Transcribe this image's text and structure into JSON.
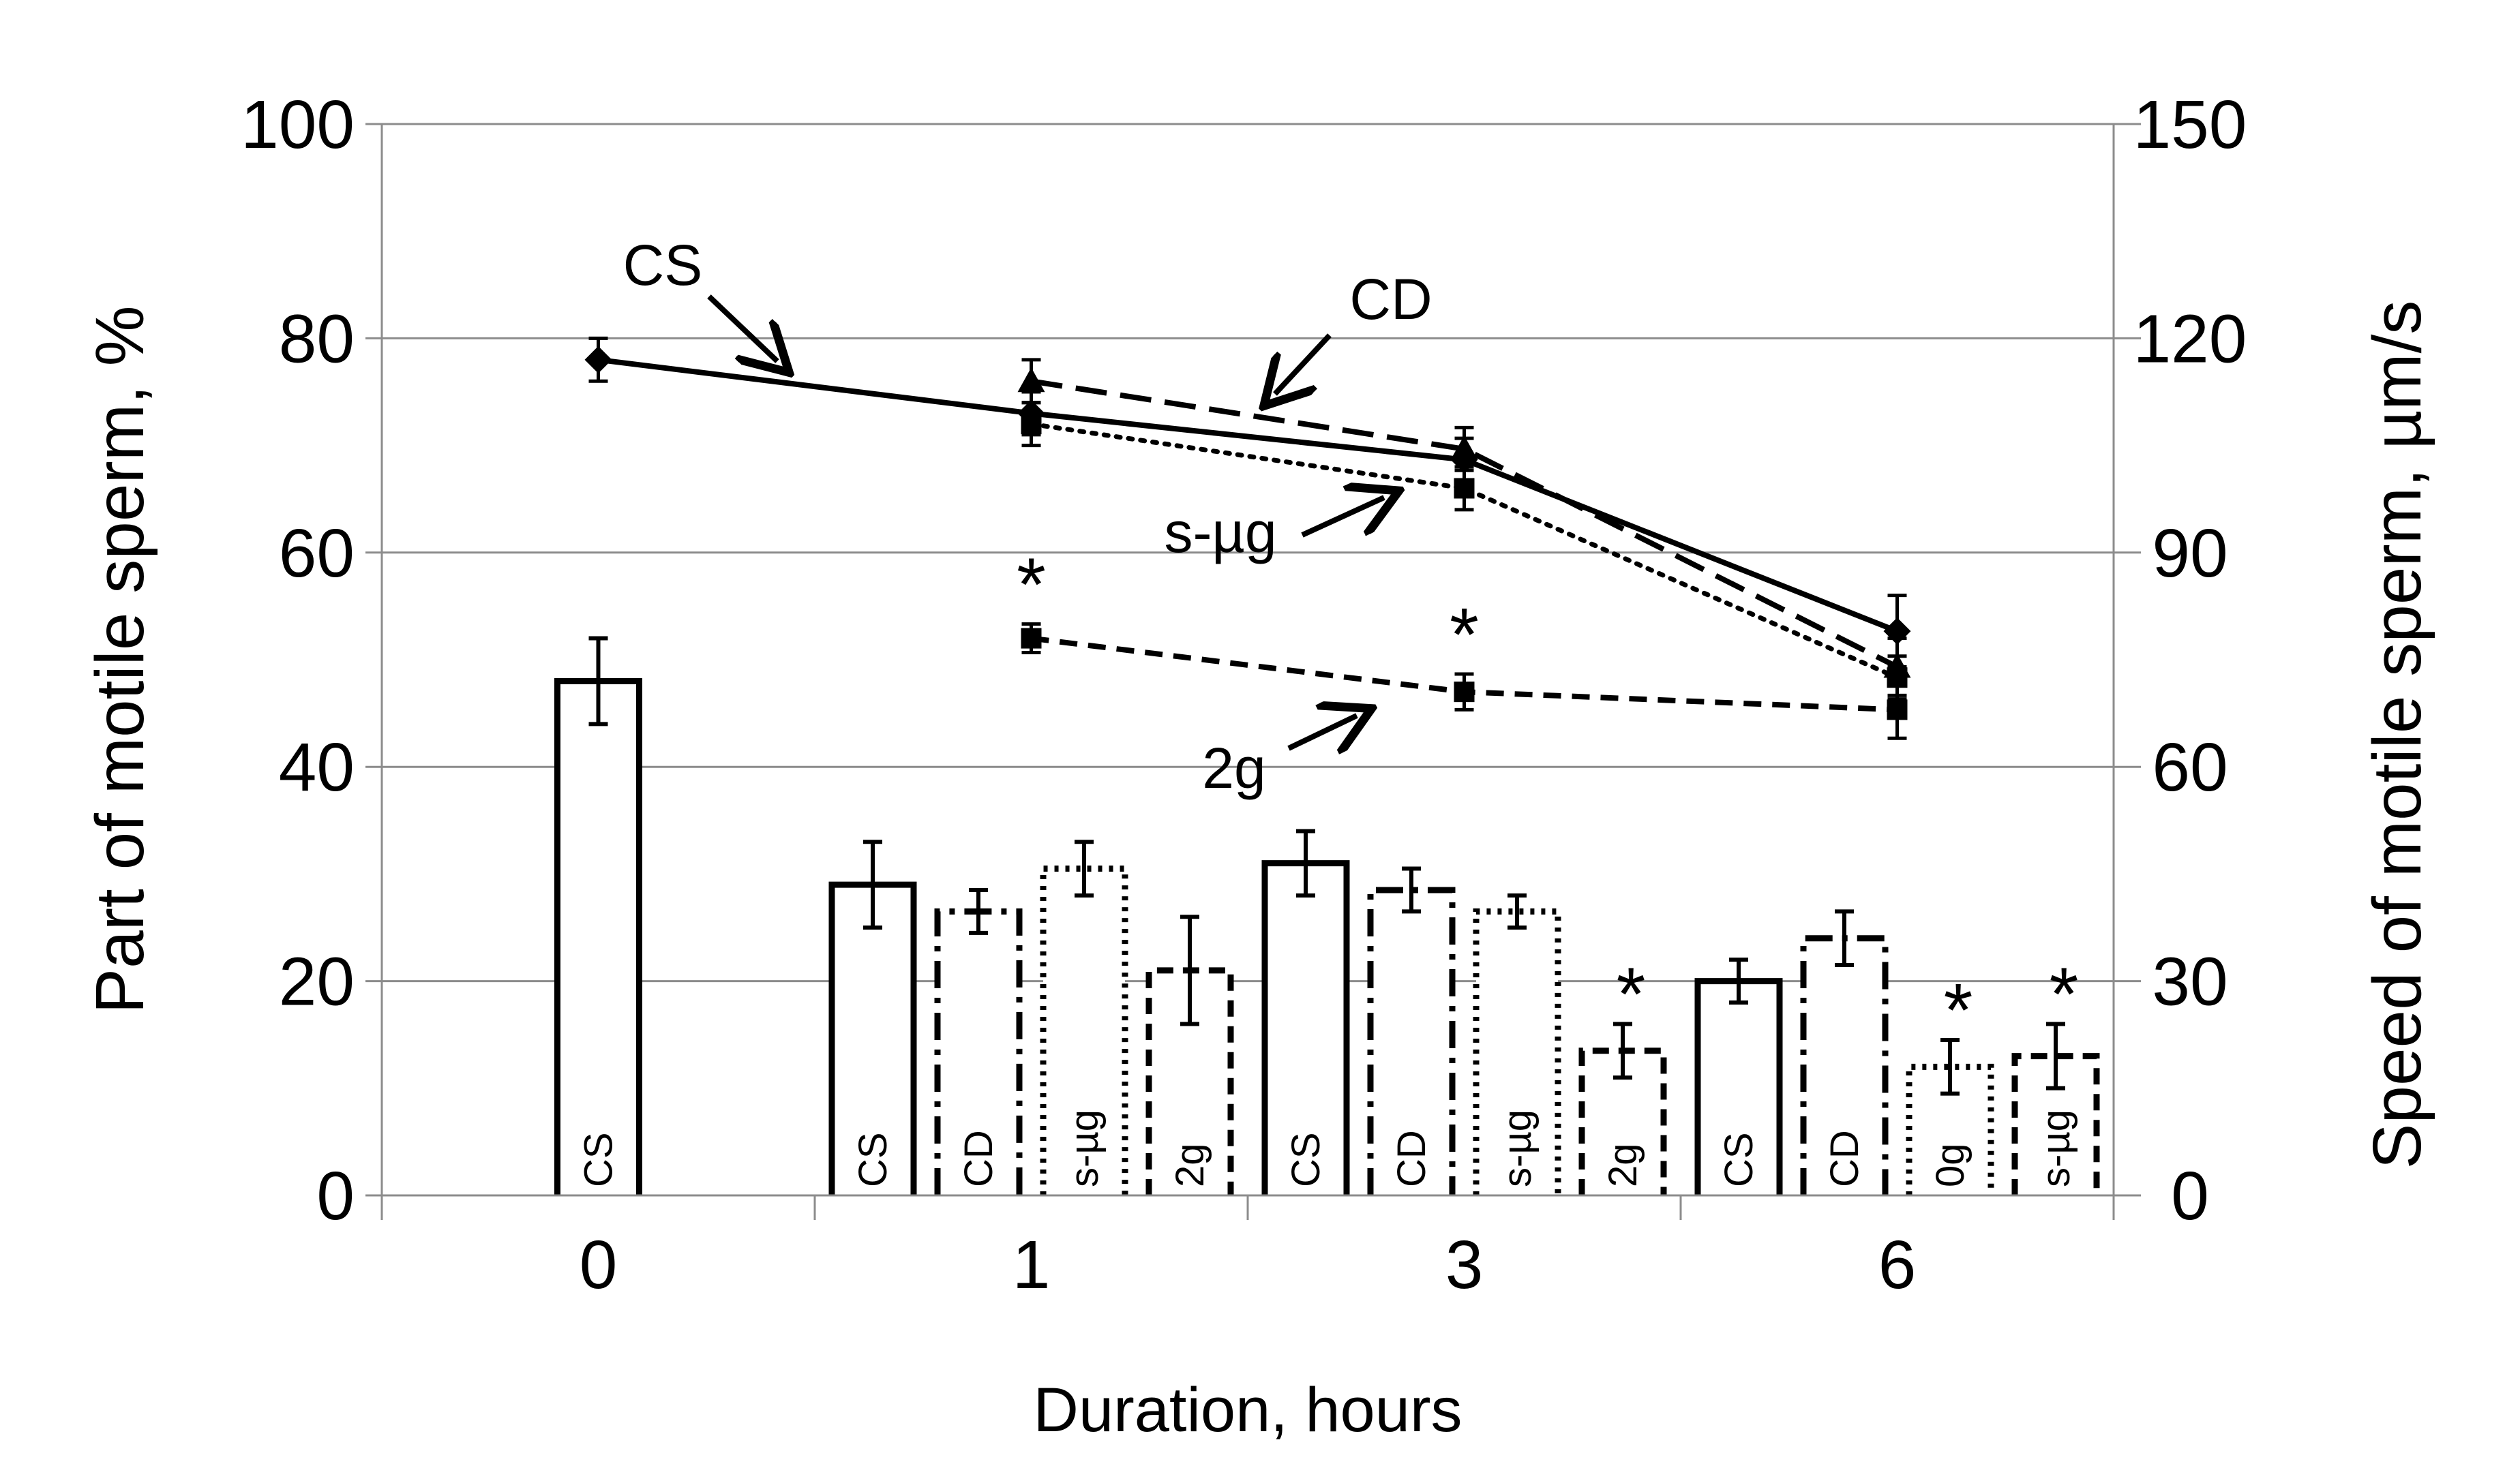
{
  "chart_data": {
    "type": "bar+line",
    "xlabel": "Duration, hours",
    "ylabel_left": "Part of motile sperm, %",
    "ylabel_right": "Speed of motile sperm, µm/s",
    "categories": [
      "0",
      "1",
      "3",
      "6"
    ],
    "ylim_left": [
      0,
      100
    ],
    "ylim_right": [
      0,
      150
    ],
    "yticks_left": [
      "0",
      "20",
      "40",
      "60",
      "80",
      "100"
    ],
    "yticks_right": [
      "0",
      "30",
      "60",
      "90",
      "120",
      "150"
    ],
    "grid": true,
    "bars": {
      "axis": "left",
      "groups": [
        {
          "category": "0",
          "bars": [
            {
              "label": "CS",
              "value": 48,
              "err": 4,
              "style": "solid",
              "star": false
            }
          ]
        },
        {
          "category": "1",
          "bars": [
            {
              "label": "CS",
              "value": 29,
              "err": 4,
              "style": "solid",
              "star": false
            },
            {
              "label": "CD",
              "value": 26.5,
              "err": 2,
              "style": "dashdot",
              "star": false
            },
            {
              "label": "s-µg",
              "value": 30.5,
              "err": 2.5,
              "style": "dotted",
              "star": false
            },
            {
              "label": "2g",
              "value": 21,
              "err": 5,
              "style": "dashed",
              "star": false
            }
          ]
        },
        {
          "category": "3",
          "bars": [
            {
              "label": "CS",
              "value": 31,
              "err": 3,
              "style": "solid",
              "star": false
            },
            {
              "label": "CD",
              "value": 28.5,
              "err": 2,
              "style": "dashdot",
              "star": false
            },
            {
              "label": "s-µg",
              "value": 26.5,
              "err": 1.5,
              "style": "dotted",
              "star": false
            },
            {
              "label": "2g",
              "value": 13.5,
              "err": 2.5,
              "style": "dashed",
              "star": true
            }
          ]
        },
        {
          "category": "6",
          "bars": [
            {
              "label": "CS",
              "value": 20,
              "err": 2,
              "style": "solid",
              "star": false
            },
            {
              "label": "CD",
              "value": 24,
              "err": 2.5,
              "style": "dashdot",
              "star": false
            },
            {
              "label": "0g",
              "value": 12,
              "err": 2.5,
              "style": "dotted",
              "star": true
            },
            {
              "label": "s-µg",
              "value": 13,
              "err": 3,
              "style": "dashed",
              "star": true
            }
          ]
        }
      ]
    },
    "series": [
      {
        "name": "CS",
        "axis": "right",
        "style": "solid",
        "marker": "diamond",
        "points": [
          {
            "x": "0",
            "y": 117,
            "err": 3
          },
          {
            "x": "1",
            "y": 109.5,
            "err": 3
          },
          {
            "x": "3",
            "y": 103,
            "err": 3
          },
          {
            "x": "6",
            "y": 79,
            "err": 5
          }
        ]
      },
      {
        "name": "CD",
        "axis": "right",
        "style": "longdash",
        "marker": "triangle",
        "points": [
          {
            "x": "1",
            "y": 114,
            "err": 3
          },
          {
            "x": "3",
            "y": 104.5,
            "err": 3
          },
          {
            "x": "6",
            "y": 74,
            "err": 4
          }
        ]
      },
      {
        "name": "s-µg",
        "axis": "right",
        "style": "dotted",
        "marker": "square",
        "points": [
          {
            "x": "1",
            "y": 108,
            "err": 3
          },
          {
            "x": "3",
            "y": 99,
            "err": 3
          },
          {
            "x": "6",
            "y": 72.5,
            "err": 3
          }
        ]
      },
      {
        "name": "2g",
        "axis": "right",
        "style": "dashed",
        "marker": "square",
        "points": [
          {
            "x": "1",
            "y": 78,
            "err": 2,
            "star": true
          },
          {
            "x": "3",
            "y": 70.5,
            "err": 2.5,
            "star": true
          },
          {
            "x": "6",
            "y": 68,
            "err": 4
          }
        ]
      }
    ],
    "annotations": [
      {
        "text": "CS"
      },
      {
        "text": "CD"
      },
      {
        "text": "s-µg"
      },
      {
        "text": "2g"
      }
    ],
    "star_text": "*"
  }
}
